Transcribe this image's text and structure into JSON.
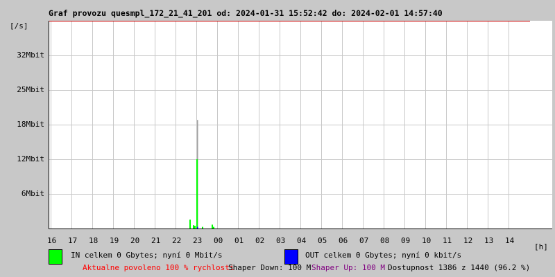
{
  "title": "Graf provozu quesmpl_172_21_41_201 od: 2024-01-31 15:52:42 do: 2024-02-01 14:57:40",
  "chart_data": {
    "type": "bar",
    "ylabel": "[/s]",
    "xlabel": "[h]",
    "x_ticks": [
      "16",
      "17",
      "18",
      "19",
      "20",
      "21",
      "22",
      "23",
      "00",
      "01",
      "02",
      "03",
      "04",
      "05",
      "06",
      "07",
      "08",
      "09",
      "10",
      "11",
      "12",
      "13",
      "14"
    ],
    "y_ticks": [
      {
        "label": "6Mbit",
        "value": 6.25
      },
      {
        "label": "12Mbit",
        "value": 12.5
      },
      {
        "label": "18Mbit",
        "value": 18.75
      },
      {
        "label": "25Mbit",
        "value": 25
      },
      {
        "label": "32Mbit",
        "value": 31.25
      }
    ],
    "ylim": [
      0,
      37.5
    ],
    "grid": true,
    "limit_line_mbit": 37.5,
    "series": [
      {
        "name": "IN",
        "color": "#00ff00",
        "points": [
          {
            "t": 6.63,
            "v": 1.6
          },
          {
            "t": 6.8,
            "v": 0.6
          },
          {
            "t": 6.87,
            "v": 0.5
          },
          {
            "t": 6.97,
            "v": 12.5
          },
          {
            "t": 7.23,
            "v": 0.3
          },
          {
            "t": 7.7,
            "v": 0.7
          },
          {
            "t": 7.77,
            "v": 0.3
          }
        ]
      },
      {
        "name": "OUT",
        "color": "#0000ff",
        "points": [
          {
            "t": 7.0,
            "v": 0.3
          }
        ]
      },
      {
        "name": "peak",
        "color": "#a0a0a0",
        "points": [
          {
            "t": 7.0,
            "v": 19.6
          }
        ]
      }
    ]
  },
  "legend": {
    "in_text": "IN celkem 0 Gbytes; nyní 0 Mbit/s",
    "out_text": "OUT celkem 0 Gbytes; nyní 0 kbit/s",
    "in_color": "#00ff00",
    "out_color": "#0000ff"
  },
  "footer": {
    "allowed": "Aktualne povoleno 100 % rychlosti",
    "down": "Shaper Down: 100 M",
    "up": "Shaper Up: 100 M",
    "availability": "Dostupnost 1386 z 1440 (96.2 %)"
  }
}
